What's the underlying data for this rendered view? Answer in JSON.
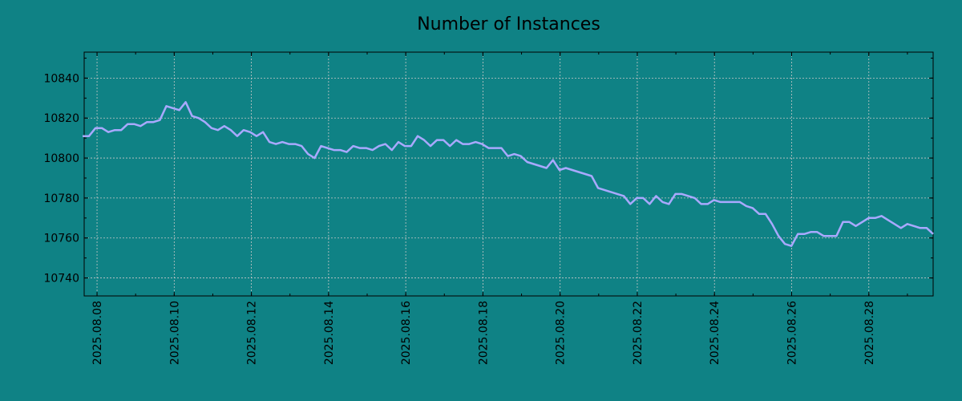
{
  "chart_data": {
    "type": "line",
    "title": "Number of Instances",
    "xlabel": "",
    "ylabel": "",
    "x_start": "2025-08-07",
    "x_end": "2025-08-29",
    "xlim": [
      "2025-08-07 16:00",
      "2025-08-29 16:00"
    ],
    "ylim": [
      10731,
      10853
    ],
    "grid": true,
    "x_ticks": [
      "2025-08-08",
      "2025-08-10",
      "2025-08-12",
      "2025-08-14",
      "2025-08-16",
      "2025-08-18",
      "2025-08-20",
      "2025-08-22",
      "2025-08-24",
      "2025-08-26",
      "2025-08-28"
    ],
    "x_tick_labels": [
      "2025.08.08",
      "2025.08.10",
      "2025.08.12",
      "2025.08.14",
      "2025.08.16",
      "2025.08.18",
      "2025.08.20",
      "2025.08.22",
      "2025.08.24",
      "2025.08.26",
      "2025.08.28"
    ],
    "y_ticks": [
      10740,
      10760,
      10780,
      10800,
      10820,
      10840
    ],
    "series": [
      {
        "name": "",
        "color": "#a9a9ff",
        "values": [
          10811,
          10811,
          10815,
          10815,
          10813,
          10814,
          10814,
          10817,
          10817,
          10816,
          10818,
          10818,
          10819,
          10826,
          10825,
          10824,
          10828,
          10821,
          10820,
          10818,
          10815,
          10814,
          10816,
          10814,
          10811,
          10814,
          10813,
          10811,
          10813,
          10808,
          10807,
          10808,
          10807,
          10807,
          10806,
          10802,
          10800,
          10806,
          10805,
          10804,
          10804,
          10803,
          10806,
          10805,
          10805,
          10804,
          10806,
          10807,
          10804,
          10808,
          10806,
          10806,
          10811,
          10809,
          10806,
          10809,
          10809,
          10806,
          10809,
          10807,
          10807,
          10808,
          10807,
          10805,
          10805,
          10805,
          10801,
          10802,
          10801,
          10798,
          10797,
          10796,
          10795,
          10799,
          10794,
          10795,
          10794,
          10793,
          10792,
          10791,
          10785,
          10784,
          10783,
          10782,
          10781,
          10777,
          10780,
          10780,
          10777,
          10781,
          10778,
          10777,
          10782,
          10782,
          10781,
          10780,
          10777,
          10777,
          10779,
          10778,
          10778,
          10778,
          10778,
          10776,
          10775,
          10772,
          10772,
          10767,
          10761,
          10757,
          10756,
          10762,
          10762,
          10763,
          10763,
          10761,
          10761,
          10761,
          10768,
          10768,
          10766,
          10768,
          10770,
          10770,
          10771,
          10769,
          10767,
          10765,
          10767,
          10766,
          10765,
          10765,
          10762
        ]
      }
    ]
  }
}
